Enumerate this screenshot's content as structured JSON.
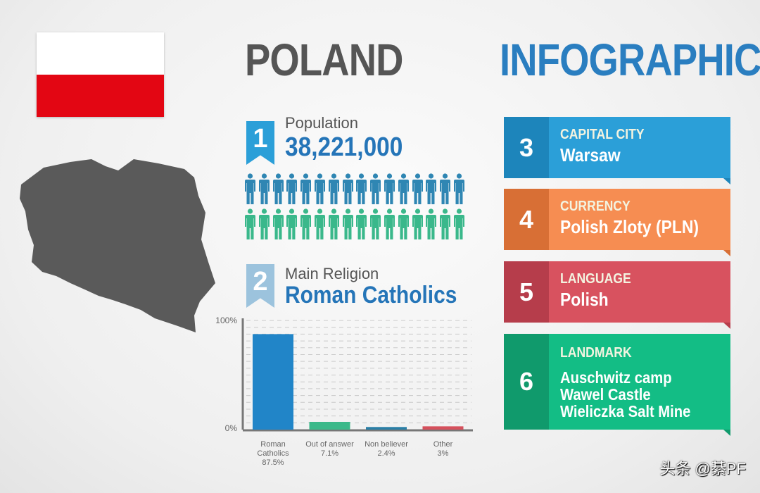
{
  "title": {
    "country": "POLAND",
    "suffix": "INFOGRAPHICS"
  },
  "flag": {
    "colors": [
      "#ffffff",
      "#e30613"
    ]
  },
  "map": {
    "color": "#5a5a5a"
  },
  "population": {
    "number": "1",
    "label": "Population",
    "value": "38,221,000",
    "icon": "person-icon",
    "icon_colors": [
      "#2f86b3",
      "#3ab88b"
    ]
  },
  "religion": {
    "number": "2",
    "label": "Main Religion",
    "value": "Roman Catholics"
  },
  "cards": [
    {
      "number": "3",
      "heading": "CAPITAL CITY",
      "lines": [
        "Warsaw"
      ],
      "color": "#2b9fd8",
      "dark": "#1d85bb"
    },
    {
      "number": "4",
      "heading": "CURRENCY",
      "lines": [
        "Polish Zloty (PLN)"
      ],
      "color": "#f68d52",
      "dark": "#d86f35"
    },
    {
      "number": "5",
      "heading": "LANGUAGE",
      "lines": [
        "Polish"
      ],
      "color": "#d8525f",
      "dark": "#b63d4b"
    },
    {
      "number": "6",
      "heading": "LANDMARK",
      "lines": [
        "Auschwitz camp",
        "Wawel Castle",
        "Wieliczka Salt Mine"
      ],
      "color": "#13bd85",
      "dark": "#109a6c"
    }
  ],
  "chart_data": {
    "type": "bar",
    "categories": [
      "Roman Catholics",
      "Out of answer",
      "Non believer",
      "Other"
    ],
    "values": [
      87.5,
      7.1,
      2.4,
      3
    ],
    "value_labels": [
      "87.5%",
      "7.1%",
      "2.4%",
      "3%"
    ],
    "colors": [
      "#2185c8",
      "#3cb98a",
      "#2a7fa6",
      "#d5505c"
    ],
    "ylim": [
      0,
      100
    ],
    "yticks": [
      "0%",
      "100%"
    ],
    "grid": true
  },
  "watermark": "头条 @綦PF"
}
